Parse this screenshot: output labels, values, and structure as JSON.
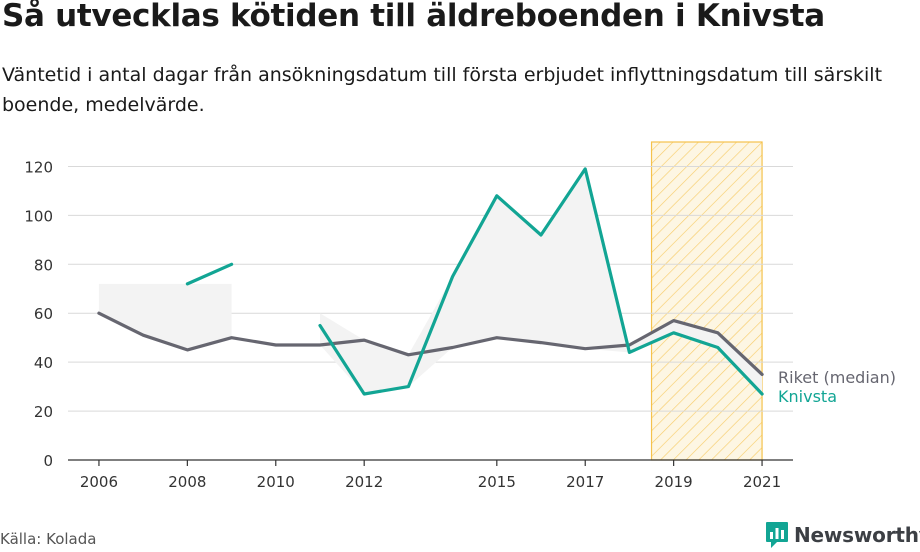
{
  "title": "Så utvecklas kötiden till äldreboenden i Knivsta",
  "subtitle": "Väntetid i antal dagar från ansökningsdatum till första erbjudet inflyttningsdatum till särskilt boende, medelvärde.",
  "source": "Källa: Kolada",
  "brand": "Newsworthy",
  "colors": {
    "knivsta": "#12a594",
    "riket": "#666670",
    "band": "#f3f3f3",
    "grid": "#d9d9d9",
    "highlight": "#f5c24c"
  },
  "chart_data": {
    "type": "line",
    "x": [
      2006,
      2007,
      2008,
      2009,
      2010,
      2011,
      2012,
      2013,
      2014,
      2015,
      2016,
      2017,
      2018,
      2019,
      2020,
      2021
    ],
    "x_ticks": [
      "2006",
      "2008",
      "2010",
      "2012",
      "2015",
      "2017",
      "2019",
      "2021"
    ],
    "y_ticks": [
      "0",
      "20",
      "40",
      "60",
      "80",
      "100",
      "120"
    ],
    "ylim": [
      0,
      130
    ],
    "xlim": [
      2005.3,
      2021.7
    ],
    "grid": true,
    "highlight_range": [
      2018.5,
      2021
    ],
    "series": [
      {
        "name": "Riket (median)",
        "values": [
          60,
          51,
          45,
          50,
          47,
          47,
          49,
          43,
          46,
          50,
          48,
          45.5,
          47,
          57,
          52,
          35
        ]
      },
      {
        "name": "Knivsta",
        "values": [
          null,
          null,
          72,
          80,
          null,
          55,
          27,
          30,
          75,
          108,
          92,
          119,
          44,
          52,
          46,
          27
        ]
      }
    ],
    "band_upper": [
      72,
      72,
      72,
      72,
      null,
      60,
      49,
      43,
      75,
      108,
      92,
      119,
      47,
      57,
      52,
      35
    ],
    "band_lower": [
      60,
      51,
      45,
      50,
      null,
      47,
      27,
      30,
      46,
      50,
      48,
      45.5,
      44,
      52,
      46,
      27
    ]
  }
}
